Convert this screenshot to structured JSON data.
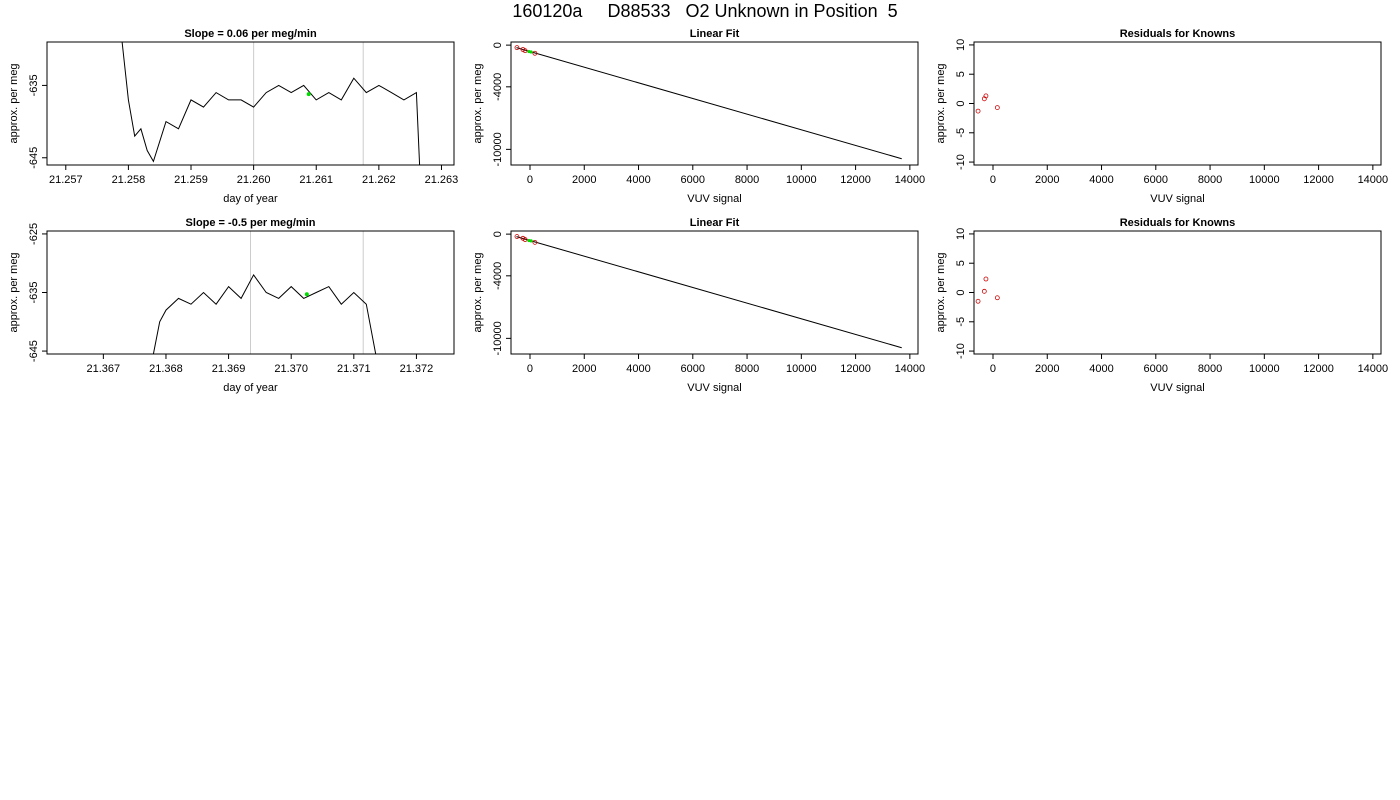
{
  "main_title": "160120a     D88533   O2 Unknown in Position  5",
  "colors": {
    "line": "#000000",
    "known_point": "#cc0000",
    "unknown_point": "#00dd00",
    "vline": "#cccccc"
  },
  "chart_data": [
    {
      "type": "line",
      "title": "Slope =  0.06  per meg/min",
      "xlabel": "day of year",
      "ylabel": "approx. per meg",
      "xlim": [
        21.2567,
        21.2632
      ],
      "ylim": [
        -646,
        -629
      ],
      "xticks": [
        "21.257",
        "21.258",
        "21.259",
        "21.260",
        "21.261",
        "21.262",
        "21.263"
      ],
      "yticks": [
        "-645",
        "-635"
      ],
      "vlines": [
        21.26,
        21.26175
      ],
      "series": [
        {
          "x": [
            21.2579,
            21.258,
            21.2581,
            21.2582,
            21.2583,
            21.2584,
            21.2586,
            21.2588,
            21.259,
            21.2592,
            21.2594,
            21.2596,
            21.2598,
            21.26,
            21.2602,
            21.2604,
            21.2606,
            21.2608,
            21.261,
            21.2612,
            21.2614,
            21.2616,
            21.2618,
            21.262,
            21.2622,
            21.2624,
            21.2626,
            21.26265
          ],
          "y": [
            -629,
            -637,
            -642,
            -641,
            -644,
            -645.5,
            -640,
            -641,
            -637,
            -638,
            -636,
            -637,
            -637,
            -638,
            -636,
            -635,
            -636,
            -635,
            -637,
            -636,
            -637,
            -634,
            -636,
            -635,
            -636,
            -637,
            -636,
            -646
          ]
        }
      ],
      "highlight": {
        "x": 21.26088,
        "y": -636.2
      }
    },
    {
      "type": "scatter",
      "title": "Linear Fit",
      "xlabel": "VUV signal",
      "ylabel": "approx. per meg",
      "xlim": [
        -700,
        14300
      ],
      "ylim": [
        -11500,
        300
      ],
      "xticks": [
        0,
        2000,
        4000,
        6000,
        8000,
        10000,
        12000,
        14000
      ],
      "yticks": [
        0,
        -4000,
        -10000
      ],
      "fit_line": {
        "x": [
          -500,
          13700
        ],
        "y": [
          -240,
          -10900
        ]
      },
      "known_points": {
        "x": [
          -480,
          -260,
          -180,
          180
        ],
        "y": [
          -240,
          -420,
          -530,
          -780
        ]
      },
      "unknown_points": {
        "x": [
          -40,
          40
        ],
        "y": [
          -615,
          -655
        ]
      }
    },
    {
      "type": "scatter",
      "title": "Residuals for Knowns",
      "xlabel": "VUV signal",
      "ylabel": "approx. per meg",
      "xlim": [
        -700,
        14300
      ],
      "ylim": [
        -10.5,
        10.5
      ],
      "xticks": [
        0,
        2000,
        4000,
        6000,
        8000,
        10000,
        12000,
        14000
      ],
      "yticks": [
        10,
        5,
        0,
        -5,
        -10
      ],
      "points": {
        "x": [
          -550,
          -320,
          -260,
          160
        ],
        "y": [
          -1.3,
          0.8,
          1.3,
          -0.7
        ]
      }
    },
    {
      "type": "line",
      "title": "Slope =  -0.5  per meg/min",
      "xlabel": "day of year",
      "ylabel": "approx. per meg",
      "xlim": [
        21.3661,
        21.3726
      ],
      "ylim": [
        -645.5,
        -624.5
      ],
      "xticks": [
        "21.367",
        "21.368",
        "21.369",
        "21.370",
        "21.371",
        "21.372"
      ],
      "yticks": [
        "-625",
        "-635",
        "-645"
      ],
      "vlines": [
        21.36935,
        21.37115
      ],
      "series": [
        {
          "x": [
            21.3678,
            21.3679,
            21.368,
            21.3682,
            21.3684,
            21.3686,
            21.3688,
            21.369,
            21.3692,
            21.3694,
            21.3696,
            21.3698,
            21.37,
            21.3702,
            21.3704,
            21.3706,
            21.3708,
            21.371,
            21.3712,
            21.37135
          ],
          "y": [
            -645.5,
            -640,
            -638,
            -636,
            -637,
            -635,
            -637,
            -634,
            -636,
            -632,
            -635,
            -636,
            -634,
            -636,
            -635,
            -634,
            -637,
            -635,
            -637,
            -645.5
          ]
        }
      ],
      "highlight": {
        "x": 21.37025,
        "y": -635.3
      }
    },
    {
      "type": "scatter",
      "title": "Linear Fit",
      "xlabel": "VUV signal",
      "ylabel": "approx. per meg",
      "xlim": [
        -700,
        14300
      ],
      "ylim": [
        -11500,
        300
      ],
      "xticks": [
        0,
        2000,
        4000,
        6000,
        8000,
        10000,
        12000,
        14000
      ],
      "yticks": [
        0,
        -4000,
        -10000
      ],
      "fit_line": {
        "x": [
          -500,
          13700
        ],
        "y": [
          -240,
          -10900
        ]
      },
      "known_points": {
        "x": [
          -480,
          -260,
          -180,
          180
        ],
        "y": [
          -230,
          -400,
          -520,
          -790
        ]
      },
      "unknown_points": {
        "x": [
          -40,
          40
        ],
        "y": [
          -615,
          -650
        ]
      }
    },
    {
      "type": "scatter",
      "title": "Residuals for Knowns",
      "xlabel": "VUV signal",
      "ylabel": "approx. per meg",
      "xlim": [
        -700,
        14300
      ],
      "ylim": [
        -10.5,
        10.5
      ],
      "xticks": [
        0,
        2000,
        4000,
        6000,
        8000,
        10000,
        12000,
        14000
      ],
      "yticks": [
        10,
        5,
        0,
        -5,
        -10
      ],
      "points": {
        "x": [
          -550,
          -320,
          -260,
          160
        ],
        "y": [
          -1.5,
          0.2,
          2.3,
          -0.9
        ]
      }
    }
  ]
}
